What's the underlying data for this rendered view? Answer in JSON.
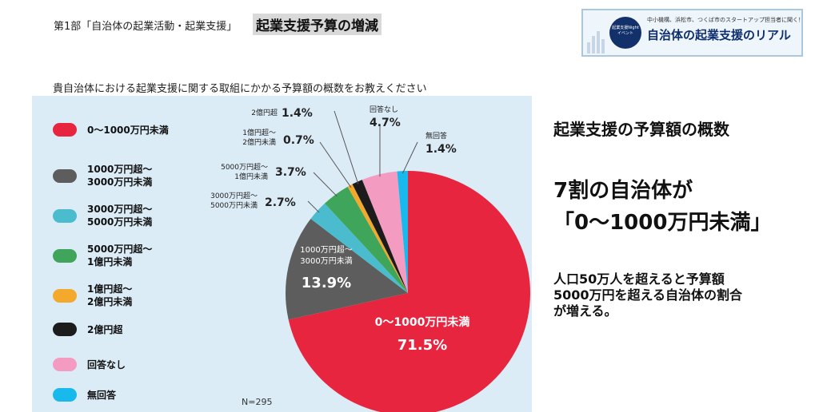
{
  "header": {
    "subtitle": "第1部「自治体の起業活動・起業支援」",
    "title": "起業支援予算の増減"
  },
  "banner": {
    "circle_text": "起業支援Night イベント",
    "top_text": "中小機構、浜松市、つくば市のスタートアップ担当者に聞く！",
    "main_text": "自治体の起業支援のリアル"
  },
  "question": "貴自治体における起業支援に関する取組にかかる予算額の概数をお教えください",
  "chart_data": {
    "type": "pie",
    "title": "貴自治体における起業支援に関する取組にかかる予算額の概数をお教えください",
    "n_label": "N=295",
    "slices": [
      {
        "label": "0～1000万円未満",
        "legend": "0～1000万円未満",
        "value": 71.5,
        "display": "71.5%",
        "color": "#e8253f"
      },
      {
        "label": "1000万円超～\n3000万円未満",
        "legend": "1000万円超～\n3000万円未満",
        "value": 13.9,
        "display": "13.9%",
        "color": "#5d5d5d"
      },
      {
        "label": "3000万円超～\n5000万円未満",
        "legend": "3000万円超～\n5000万円未満",
        "value": 2.7,
        "display": "2.7%",
        "color": "#4bbccd"
      },
      {
        "label": "5000万円超～\n1億円未満",
        "legend": "5000万円超～\n1億円未満",
        "value": 3.7,
        "display": "3.7%",
        "color": "#3fa55a"
      },
      {
        "label": "1億円超～\n2億円未満",
        "legend": "1億円超～\n2億円未満",
        "value": 0.7,
        "display": "0.7%",
        "color": "#f3a92b"
      },
      {
        "label": "2億円超",
        "legend": "2億円超",
        "value": 1.4,
        "display": "1.4%",
        "color": "#1c1c1c"
      },
      {
        "label": "回答なし",
        "legend": "回答なし",
        "value": 4.7,
        "display": "4.7%",
        "color": "#f49bc1"
      },
      {
        "label": "無回答",
        "legend": "無回答",
        "value": 1.4,
        "display": "1.4%",
        "color": "#18b9ec"
      }
    ]
  },
  "side": {
    "heading": "起業支援の予算額の概数",
    "highlight_line1": "7割の自治体が",
    "highlight_line2": "「0～1000万円未満」",
    "note": "人口50万人を超えると予算額\n5000万円を超える自治体の割合\nが増える。"
  }
}
